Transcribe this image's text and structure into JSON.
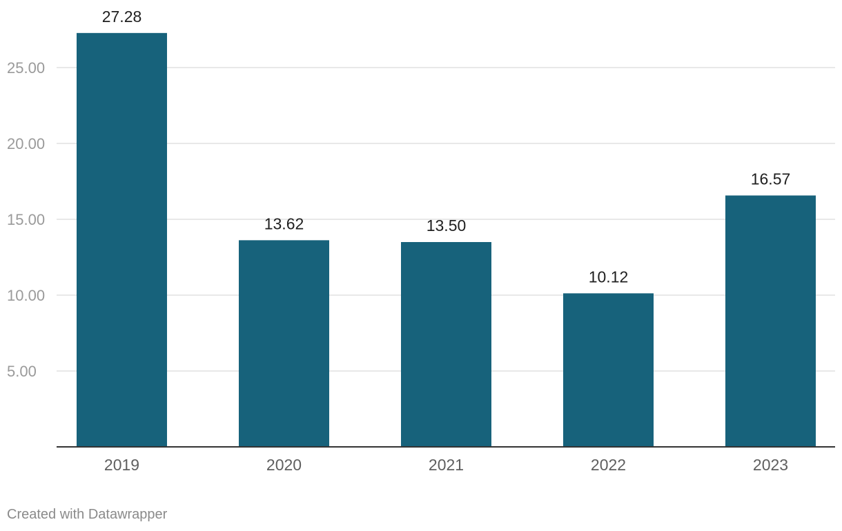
{
  "chart_data": {
    "type": "bar",
    "categories": [
      "2019",
      "2020",
      "2021",
      "2022",
      "2023"
    ],
    "values": [
      27.28,
      13.62,
      13.5,
      10.12,
      16.57
    ],
    "value_labels": [
      "27.28",
      "13.62",
      "13.50",
      "10.12",
      "16.57"
    ],
    "title": "",
    "xlabel": "",
    "ylabel": "",
    "ylim": [
      0,
      30
    ],
    "yticks": [
      5,
      10,
      15,
      20,
      25
    ],
    "ytick_labels": [
      "5.00",
      "10.00",
      "15.00",
      "20.00",
      "25.00"
    ],
    "grid": true,
    "bar_color": "#17627b"
  },
  "footer": {
    "credit": "Created with Datawrapper"
  }
}
